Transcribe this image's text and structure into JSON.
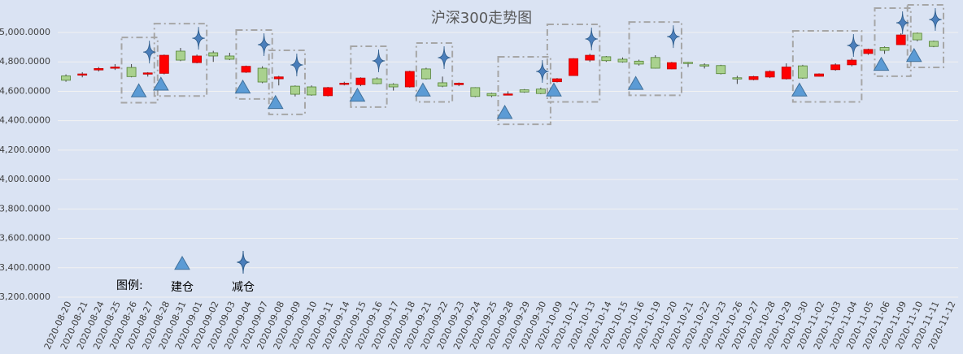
{
  "chart_data": {
    "type": "candlestick",
    "title": "沪深300走势图",
    "categories": [
      "2020-08-20",
      "2020-08-21",
      "2020-08-24",
      "2020-08-25",
      "2020-08-26",
      "2020-08-27",
      "2020-08-28",
      "2020-08-31",
      "2020-09-01",
      "2020-09-02",
      "2020-09-03",
      "2020-09-04",
      "2020-09-07",
      "2020-09-08",
      "2020-09-09",
      "2020-09-10",
      "2020-09-11",
      "2020-09-14",
      "2020-09-15",
      "2020-09-16",
      "2020-09-17",
      "2020-09-18",
      "2020-09-21",
      "2020-09-22",
      "2020-09-23",
      "2020-09-24",
      "2020-09-25",
      "2020-09-28",
      "2020-09-29",
      "2020-09-30",
      "2020-10-09",
      "2020-10-12",
      "2020-10-13",
      "2020-10-14",
      "2020-10-15",
      "2020-10-16",
      "2020-10-19",
      "2020-10-20",
      "2020-10-21",
      "2020-10-22",
      "2020-10-23",
      "2020-10-26",
      "2020-10-27",
      "2020-10-28",
      "2020-10-29",
      "2020-10-30",
      "2020-11-02",
      "2020-11-03",
      "2020-11-04",
      "2020-11-05",
      "2020-11-06",
      "2020-11-09",
      "2020-11-10",
      "2020-11-11",
      "2020-11-12"
    ],
    "open": [
      4705,
      4710,
      4745,
      4760,
      4762,
      4718,
      4722,
      4873,
      4795,
      4862,
      4840,
      4730,
      4757,
      4685,
      4635,
      4630,
      4570,
      4648,
      4645,
      4685,
      4647,
      4630,
      4752,
      4658,
      4645,
      4625,
      4585,
      4578,
      4610,
      4615,
      4665,
      4707,
      4812,
      4835,
      4818,
      4805,
      4830,
      4752,
      4797,
      4780,
      4775,
      4692,
      4680,
      4697,
      4685,
      4773,
      4702,
      4747,
      4780,
      4857,
      4898,
      4917,
      4995,
      4940,
      null
    ],
    "high": [
      4715,
      4730,
      4765,
      4785,
      4785,
      4730,
      4850,
      4895,
      4850,
      4875,
      4862,
      4775,
      4770,
      4705,
      4640,
      4640,
      4630,
      4665,
      4695,
      4695,
      4655,
      4740,
      4760,
      4700,
      4660,
      4628,
      4590,
      4600,
      4615,
      4625,
      4690,
      4825,
      4855,
      4840,
      4830,
      4815,
      4845,
      4800,
      4800,
      4790,
      4780,
      4705,
      4705,
      4742,
      4790,
      4780,
      4722,
      4790,
      4825,
      4890,
      4905,
      4995,
      5000,
      4945,
      null
    ],
    "low": [
      4665,
      4695,
      4735,
      4745,
      4695,
      4700,
      4715,
      4805,
      4790,
      4800,
      4812,
      4725,
      4655,
      4640,
      4565,
      4570,
      4565,
      4640,
      4635,
      4648,
      4605,
      4625,
      4680,
      4628,
      4635,
      4560,
      4560,
      4575,
      4590,
      4580,
      4660,
      4705,
      4800,
      4800,
      4795,
      4775,
      4755,
      4750,
      4765,
      4755,
      4715,
      4650,
      4675,
      4690,
      4680,
      4685,
      4700,
      4740,
      4770,
      4848,
      4855,
      4915,
      4940,
      4900,
      null
    ],
    "close": [
      4675,
      4718,
      4755,
      4765,
      4700,
      4725,
      4845,
      4812,
      4840,
      4840,
      4818,
      4770,
      4663,
      4698,
      4580,
      4575,
      4625,
      4655,
      4690,
      4652,
      4630,
      4735,
      4685,
      4635,
      4655,
      4565,
      4570,
      4582,
      4595,
      4585,
      4685,
      4822,
      4845,
      4808,
      4800,
      4785,
      4757,
      4795,
      4792,
      4776,
      4720,
      4690,
      4700,
      4735,
      4765,
      4690,
      4718,
      4780,
      4812,
      4885,
      4878,
      4983,
      4950,
      4905,
      null
    ],
    "up_color": "#ff0000",
    "down_color": "#a9d18e",
    "series": [
      {
        "name": "建仓",
        "color": "#5b9bd5",
        "values": [
          null,
          null,
          null,
          null,
          4600,
          null,
          4645,
          null,
          null,
          null,
          null,
          4625,
          null,
          4520,
          null,
          null,
          null,
          null,
          4570,
          null,
          null,
          null,
          4605,
          null,
          null,
          null,
          null,
          4453,
          null,
          null,
          4605,
          null,
          null,
          null,
          null,
          4650,
          null,
          null,
          null,
          null,
          null,
          null,
          null,
          null,
          null,
          4605,
          null,
          null,
          null,
          null,
          4780,
          null,
          4840,
          null,
          null
        ]
      },
      {
        "name": "减仓",
        "color": "#4a7ebb",
        "values": [
          null,
          null,
          null,
          null,
          null,
          4867,
          null,
          null,
          4961,
          null,
          null,
          null,
          4917,
          null,
          4779,
          null,
          null,
          null,
          null,
          4807,
          null,
          null,
          null,
          4829,
          null,
          null,
          null,
          null,
          null,
          4735,
          null,
          null,
          4956,
          null,
          null,
          null,
          null,
          4972,
          null,
          null,
          null,
          null,
          null,
          null,
          null,
          null,
          null,
          null,
          4912,
          null,
          null,
          5066,
          null,
          5088,
          null
        ]
      }
    ],
    "legend_title": "图例:",
    "ylim": [
      3200,
      5000
    ],
    "yticks": [
      {
        "value": 3200,
        "label": "3,200.0000"
      },
      {
        "value": 3400,
        "label": "3,400.0000"
      },
      {
        "value": 3600,
        "label": "3,600.0000"
      },
      {
        "value": 3800,
        "label": "3,800.0000"
      },
      {
        "value": 4000,
        "label": "4,000.0000"
      },
      {
        "value": 4200,
        "label": "4,200.0000"
      },
      {
        "value": 4400,
        "label": "4,400.0000"
      },
      {
        "value": 4600,
        "label": "4,600.0000"
      },
      {
        "value": 4800,
        "label": "4,800.0000"
      },
      {
        "value": 5000,
        "label": "5,000.0000"
      }
    ],
    "grid": true
  }
}
